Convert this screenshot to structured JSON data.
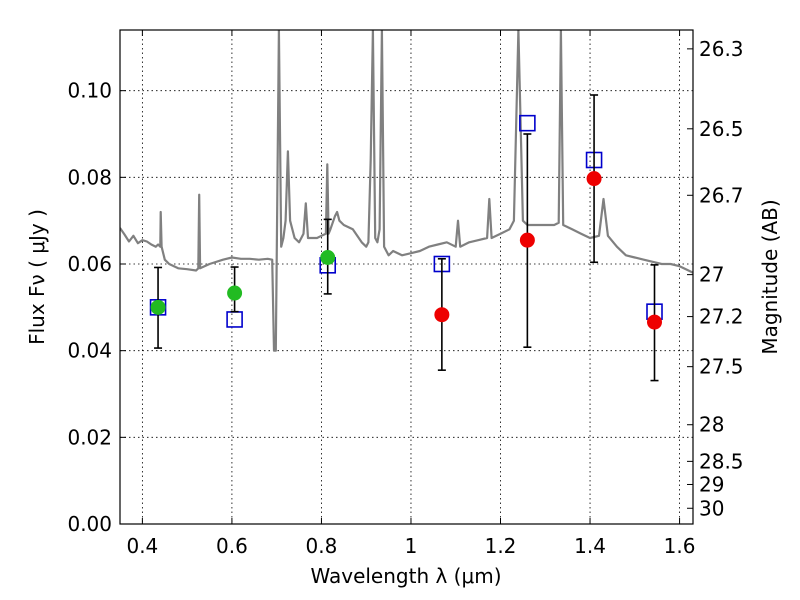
{
  "chart_data": {
    "type": "scatter",
    "xlabel": "Wavelength  λ (μm)",
    "ylabel": "Flux  Fν  ( μJy )",
    "y2label": "Magnitude (AB)",
    "xlim": [
      0.35,
      1.63
    ],
    "ylim": [
      0.0,
      0.114
    ],
    "grid": true,
    "x_ticks": [
      0.4,
      0.6,
      0.8,
      1.0,
      1.2,
      1.4,
      1.6
    ],
    "x_tick_labels": [
      "0.4",
      "0.6",
      "0.8",
      "1",
      "1.2",
      "1.4",
      "1.6"
    ],
    "y_ticks": [
      0.0,
      0.02,
      0.04,
      0.06,
      0.08,
      0.1
    ],
    "y_tick_labels": [
      "0.00",
      "0.02",
      "0.04",
      "0.06",
      "0.08",
      "0.10"
    ],
    "magnitude_ticks": [
      "26.3",
      "26.5",
      "26.7",
      "27",
      "27.2",
      "27.5",
      "28",
      "28.5",
      "29",
      "30"
    ],
    "colors": {
      "model": "#808080",
      "green": "#22bb22",
      "red": "#ee0000",
      "box": "#0000cc",
      "errorbar": "#000000"
    },
    "series": [
      {
        "marker": "square",
        "points": [
          {
            "x": 0.435,
            "y": 0.05
          },
          {
            "x": 0.606,
            "y": 0.0472
          },
          {
            "x": 0.814,
            "y": 0.0597
          },
          {
            "x": 1.069,
            "y": 0.06
          },
          {
            "x": 1.26,
            "y": 0.0925
          },
          {
            "x": 1.409,
            "y": 0.084
          },
          {
            "x": 1.544,
            "y": 0.049
          }
        ]
      },
      {
        "marker": "circle",
        "points": [
          {
            "x": 0.435,
            "y": 0.05,
            "yerr_low": 0.0406,
            "yerr_high": 0.0592,
            "color": "green"
          },
          {
            "x": 0.606,
            "y": 0.0533,
            "yerr_low": 0.049,
            "yerr_high": 0.0593,
            "color": "green"
          },
          {
            "x": 0.814,
            "y": 0.0615,
            "yerr_low": 0.0531,
            "yerr_high": 0.0703,
            "color": "green"
          },
          {
            "x": 1.069,
            "y": 0.0483,
            "yerr_low": 0.0355,
            "yerr_high": 0.0612,
            "color": "red"
          },
          {
            "x": 1.26,
            "y": 0.0655,
            "yerr_low": 0.0408,
            "yerr_high": 0.09,
            "color": "red"
          },
          {
            "x": 1.409,
            "y": 0.0797,
            "yerr_low": 0.0604,
            "yerr_high": 0.099,
            "color": "red"
          },
          {
            "x": 1.544,
            "y": 0.0466,
            "yerr_low": 0.0331,
            "yerr_high": 0.0598,
            "color": "red"
          }
        ]
      },
      {
        "type": "line",
        "points": [
          [
            0.35,
            0.0683
          ],
          [
            0.36,
            0.0668
          ],
          [
            0.37,
            0.0652
          ],
          [
            0.38,
            0.0665
          ],
          [
            0.39,
            0.0648
          ],
          [
            0.4,
            0.0655
          ],
          [
            0.41,
            0.0652
          ],
          [
            0.42,
            0.0645
          ],
          [
            0.43,
            0.064
          ],
          [
            0.435,
            0.0645
          ],
          [
            0.44,
            0.064
          ],
          [
            0.441,
            0.072
          ],
          [
            0.443,
            0.064
          ],
          [
            0.45,
            0.061
          ],
          [
            0.46,
            0.06
          ],
          [
            0.48,
            0.059
          ],
          [
            0.5,
            0.0588
          ],
          [
            0.52,
            0.0585
          ],
          [
            0.525,
            0.059
          ],
          [
            0.527,
            0.076
          ],
          [
            0.529,
            0.059
          ],
          [
            0.55,
            0.06
          ],
          [
            0.58,
            0.061
          ],
          [
            0.6,
            0.0615
          ],
          [
            0.62,
            0.0612
          ],
          [
            0.64,
            0.0612
          ],
          [
            0.66,
            0.061
          ],
          [
            0.68,
            0.0612
          ],
          [
            0.69,
            0.061
          ],
          [
            0.694,
            0.04
          ],
          [
            0.698,
            0.04
          ],
          [
            0.7,
            0.061
          ],
          [
            0.705,
            0.114
          ],
          [
            0.71,
            0.064
          ],
          [
            0.715,
            0.066
          ],
          [
            0.72,
            0.07
          ],
          [
            0.725,
            0.086
          ],
          [
            0.73,
            0.07
          ],
          [
            0.74,
            0.066
          ],
          [
            0.75,
            0.065
          ],
          [
            0.76,
            0.067
          ],
          [
            0.765,
            0.074
          ],
          [
            0.77,
            0.066
          ],
          [
            0.78,
            0.066
          ],
          [
            0.79,
            0.066
          ],
          [
            0.8,
            0.0665
          ],
          [
            0.81,
            0.067
          ],
          [
            0.813,
            0.083
          ],
          [
            0.816,
            0.067
          ],
          [
            0.82,
            0.068
          ],
          [
            0.83,
            0.071
          ],
          [
            0.835,
            0.072
          ],
          [
            0.84,
            0.07
          ],
          [
            0.85,
            0.069
          ],
          [
            0.87,
            0.068
          ],
          [
            0.89,
            0.065
          ],
          [
            0.9,
            0.064
          ],
          [
            0.905,
            0.065
          ],
          [
            0.91,
            0.084
          ],
          [
            0.915,
            0.114
          ],
          [
            0.92,
            0.066
          ],
          [
            0.925,
            0.065
          ],
          [
            0.93,
            0.068
          ],
          [
            0.935,
            0.114
          ],
          [
            0.94,
            0.064
          ],
          [
            0.95,
            0.062
          ],
          [
            0.96,
            0.063
          ],
          [
            0.98,
            0.062
          ],
          [
            1.0,
            0.0625
          ],
          [
            1.02,
            0.063
          ],
          [
            1.04,
            0.064
          ],
          [
            1.06,
            0.0645
          ],
          [
            1.08,
            0.065
          ],
          [
            1.1,
            0.064
          ],
          [
            1.105,
            0.07
          ],
          [
            1.11,
            0.064
          ],
          [
            1.13,
            0.065
          ],
          [
            1.15,
            0.0655
          ],
          [
            1.17,
            0.066
          ],
          [
            1.175,
            0.075
          ],
          [
            1.18,
            0.066
          ],
          [
            1.2,
            0.067
          ],
          [
            1.22,
            0.068
          ],
          [
            1.23,
            0.07
          ],
          [
            1.24,
            0.114
          ],
          [
            1.25,
            0.07
          ],
          [
            1.26,
            0.069
          ],
          [
            1.28,
            0.069
          ],
          [
            1.3,
            0.069
          ],
          [
            1.32,
            0.069
          ],
          [
            1.33,
            0.0695
          ],
          [
            1.335,
            0.114
          ],
          [
            1.34,
            0.069
          ],
          [
            1.36,
            0.068
          ],
          [
            1.38,
            0.067
          ],
          [
            1.4,
            0.066
          ],
          [
            1.42,
            0.0665
          ],
          [
            1.43,
            0.075
          ],
          [
            1.44,
            0.0665
          ],
          [
            1.46,
            0.064
          ],
          [
            1.48,
            0.062
          ],
          [
            1.5,
            0.0615
          ],
          [
            1.52,
            0.061
          ],
          [
            1.54,
            0.0605
          ],
          [
            1.56,
            0.06
          ],
          [
            1.58,
            0.06
          ],
          [
            1.6,
            0.0595
          ],
          [
            1.62,
            0.0585
          ],
          [
            1.63,
            0.058
          ]
        ]
      }
    ]
  }
}
